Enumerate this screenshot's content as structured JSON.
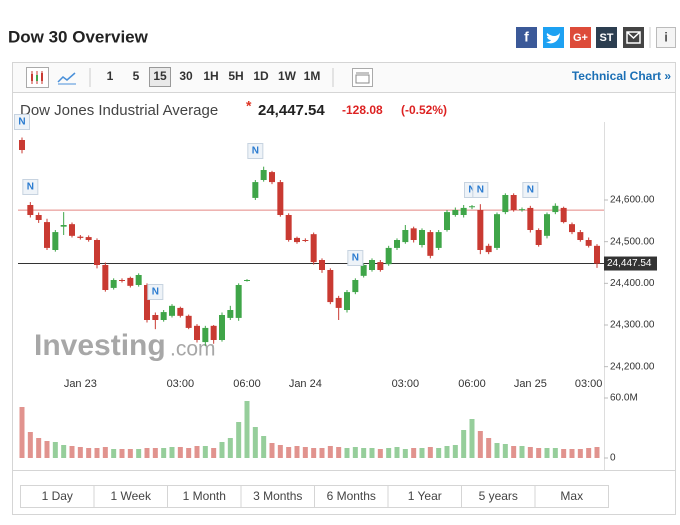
{
  "header": {
    "title": "Dow 30 Overview",
    "social": {
      "facebook": "f",
      "google": "G+",
      "stocktwits": "ST",
      "info": "i"
    }
  },
  "toolbar": {
    "intervals": [
      "1",
      "5",
      "15",
      "30",
      "1H",
      "5H",
      "1D",
      "1W",
      "1M"
    ],
    "technical_link": "Technical Chart »"
  },
  "watermark": {
    "brand": "Investing",
    "suffix": ".com"
  },
  "news_label": "N",
  "range_buttons": [
    "1 Day",
    "1 Week",
    "1 Month",
    "3 Months",
    "6 Months",
    "1 Year",
    "5 years",
    "Max"
  ],
  "chart_data": {
    "type": "candlestick",
    "title": "Dow Jones Industrial Average",
    "marker": "*",
    "last_price": {
      "value": 24447.54,
      "label": "24,447.54"
    },
    "change": {
      "value": -128.08,
      "label": "-128.08"
    },
    "change_pct": {
      "value": -0.52,
      "label": "(-0.52%)"
    },
    "previous_close": 24575.62,
    "up_color": "#3fa548",
    "down_color": "#c93a32",
    "categories": [
      null,
      null,
      null,
      null,
      null,
      null,
      null,
      "Jan 23",
      null,
      null,
      null,
      null,
      null,
      null,
      null,
      null,
      null,
      null,
      null,
      "03:00",
      null,
      null,
      null,
      null,
      null,
      null,
      null,
      "06:00",
      null,
      null,
      null,
      null,
      null,
      null,
      "Jan 24",
      null,
      null,
      null,
      null,
      null,
      null,
      null,
      null,
      null,
      null,
      null,
      "03:00",
      null,
      null,
      null,
      null,
      null,
      null,
      null,
      "06:00",
      null,
      null,
      null,
      null,
      null,
      null,
      "Jan 25",
      null,
      null,
      null,
      null,
      null,
      null,
      "03:00",
      null
    ],
    "open": [
      24744,
      24588,
      24564,
      24547,
      24480,
      24536,
      24542,
      24512,
      24511,
      24504,
      24444,
      24389,
      24408,
      24413,
      24396,
      24396,
      24324,
      24312,
      24322,
      24341,
      24322,
      24298,
      24259,
      24298,
      24264,
      24317,
      24317,
      24406,
      24605,
      24648,
      24667,
      24643,
      24564,
      24509,
      24504,
      24518,
      24456,
      24432,
      24365,
      24336,
      24379,
      24418,
      24432,
      24451,
      24446,
      24485,
      24499,
      24532,
      24492,
      24523,
      24485,
      24528,
      24564,
      24564,
      24583,
      24576,
      24490,
      24485,
      24571,
      24612,
      24576,
      24581,
      24528,
      24514,
      24571,
      24581,
      24542,
      24523,
      24504,
      24490
    ],
    "high": [
      24750,
      24595,
      24570,
      24555,
      24528,
      24571,
      24546,
      24516,
      24515,
      24508,
      24450,
      24412,
      24412,
      24416,
      24424,
      24400,
      24330,
      24336,
      24350,
      24344,
      24325,
      24302,
      24298,
      24300,
      24330,
      24346,
      24400,
      24410,
      24648,
      24680,
      24670,
      24648,
      24568,
      24512,
      24508,
      24522,
      24460,
      24436,
      24370,
      24384,
      24412,
      24448,
      24460,
      24456,
      24490,
      24508,
      24540,
      24536,
      24532,
      24528,
      24528,
      24576,
      24582,
      24588,
      24588,
      24590,
      24495,
      24570,
      24616,
      24616,
      24582,
      24586,
      24532,
      24570,
      24592,
      24584,
      24546,
      24528,
      24510,
      24494
    ],
    "low": [
      24712,
      24558,
      24545,
      24480,
      24476,
      24516,
      24510,
      24505,
      24500,
      24436,
      24380,
      24385,
      24402,
      24390,
      24392,
      24306,
      24290,
      24308,
      24318,
      24318,
      24290,
      24258,
      24250,
      24255,
      24260,
      24312,
      24310,
      24404,
      24600,
      24644,
      24638,
      24560,
      24500,
      24495,
      24499,
      24445,
      24425,
      24350,
      24312,
      24330,
      24374,
      24414,
      24428,
      24428,
      24442,
      24480,
      24495,
      24498,
      24486,
      24460,
      24480,
      24524,
      24560,
      24558,
      24578,
      24470,
      24470,
      24480,
      24566,
      24572,
      24572,
      24522,
      24488,
      24508,
      24566,
      24544,
      24518,
      24500,
      24486,
      24437
    ],
    "close": [
      24720,
      24564,
      24552,
      24485,
      24523,
      24540,
      24514,
      24509,
      24504,
      24444,
      24384,
      24408,
      24406,
      24394,
      24420,
      24312,
      24312,
      24331,
      24346,
      24322,
      24293,
      24264,
      24293,
      24264,
      24324,
      24336,
      24396,
      24408,
      24643,
      24672,
      24643,
      24564,
      24504,
      24499,
      24502,
      24451,
      24432,
      24355,
      24341,
      24379,
      24408,
      24444,
      24456,
      24432,
      24485,
      24504,
      24528,
      24504,
      24528,
      24466,
      24523,
      24571,
      24576,
      24581,
      24585,
      24480,
      24475,
      24566,
      24612,
      24576,
      24578,
      24528,
      24492,
      24566,
      24586,
      24547,
      24523,
      24504,
      24490,
      24447.54
    ],
    "ylim": [
      24180,
      24780
    ],
    "yticks": [
      {
        "value": 24600,
        "label": "24,600.00"
      },
      {
        "value": 24500,
        "label": "24,500.00"
      },
      {
        "value": 24400,
        "label": "24,400.00"
      },
      {
        "value": 24300,
        "label": "24,300.00"
      },
      {
        "value": 24200,
        "label": "24,200.00"
      }
    ],
    "grid": false,
    "volume": {
      "values": [
        51,
        26,
        20,
        17,
        16,
        13,
        12,
        11,
        10,
        10,
        11,
        9,
        9,
        9,
        9,
        10,
        10,
        10,
        11,
        11,
        10,
        12,
        12,
        10,
        16,
        20,
        36,
        57,
        31,
        22,
        15,
        13,
        11,
        12,
        11,
        10,
        10,
        12,
        11,
        10,
        11,
        10,
        10,
        9,
        10,
        11,
        9,
        10,
        10,
        11,
        10,
        12,
        13,
        28,
        39,
        27,
        20,
        15,
        14,
        12,
        12,
        11,
        10,
        10,
        10,
        9,
        9,
        9,
        10,
        11
      ],
      "ylim": [
        0,
        60
      ],
      "yticks": [
        {
          "value": 60,
          "label": "60.0M"
        },
        0
      ]
    }
  }
}
